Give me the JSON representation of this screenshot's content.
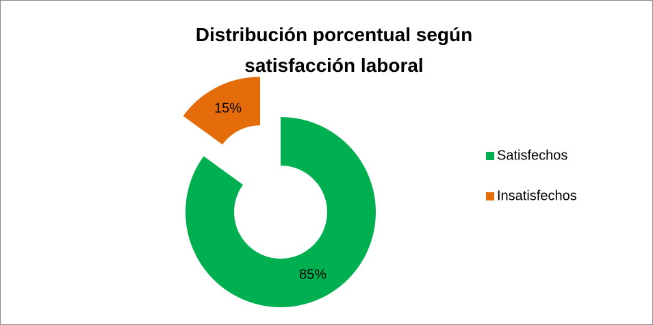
{
  "chart_data": {
    "type": "donut",
    "title": "Distribución porcentual según satisfacción laboral",
    "categories": [
      "Satisfechos",
      "Insatisfechos"
    ],
    "values": [
      85,
      15
    ],
    "value_labels": [
      "85%",
      "15%"
    ],
    "colors": [
      "#00b050",
      "#e46c0a"
    ],
    "legend": "right"
  }
}
